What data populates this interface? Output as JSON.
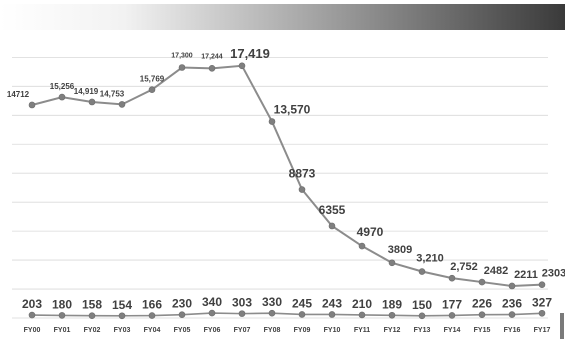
{
  "chart_data": {
    "type": "line",
    "categories": [
      "FY00",
      "FY01",
      "FY02",
      "FY03",
      "FY04",
      "FY05",
      "FY06",
      "FY07",
      "FY08",
      "FY09",
      "FY10",
      "FY11",
      "FY12",
      "FY13",
      "FY14",
      "FY15",
      "FY16",
      "FY17"
    ],
    "series": [
      {
        "values": [
          14712,
          15256,
          14919,
          14753,
          15769,
          17300,
          17244,
          17419,
          13570,
          8873,
          6355,
          4970,
          3809,
          3210,
          2752,
          2482,
          2211,
          2303
        ],
        "labels": [
          "14712",
          "15,256",
          "14,919",
          "14,753",
          "15,769",
          "17,300",
          "17,244",
          "17,419",
          "13,570",
          "8873",
          "6355",
          "4970",
          "3809",
          "3,210",
          "2,752",
          "2482",
          "2211",
          "2303"
        ]
      },
      {
        "values": [
          203,
          180,
          158,
          154,
          166,
          230,
          340,
          303,
          330,
          245,
          243,
          210,
          189,
          150,
          177,
          226,
          236,
          327
        ],
        "labels": [
          "203",
          "180",
          "158",
          "154",
          "166",
          "230",
          "340",
          "303",
          "330",
          "245",
          "243",
          "210",
          "189",
          "150",
          "177",
          "226",
          "236",
          "327"
        ]
      }
    ],
    "ylim": [
      0,
      19200
    ],
    "grid": true,
    "legend": "none",
    "colors": {
      "line": "#8c8c8c",
      "marker": "#7f7f7f",
      "grid": "#d9d9d9",
      "text": "#404040"
    }
  }
}
